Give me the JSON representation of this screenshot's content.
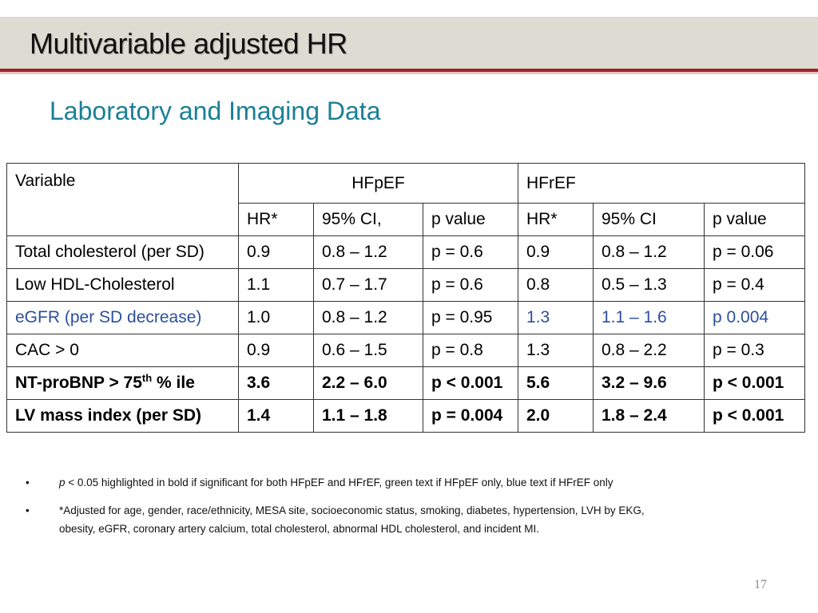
{
  "slide": {
    "title": "Multivariable adjusted HR",
    "subtitle": "Laboratory and Imaging Data",
    "page_number": "17"
  },
  "table": {
    "variable_header": "Variable",
    "group_headers": [
      "HFpEF",
      "HFrEF"
    ],
    "sub_headers": [
      "HR*",
      "95% CI,",
      "p value",
      "HR*",
      "95% CI",
      "p value"
    ],
    "rows": [
      {
        "variable": "Total cholesterol (per SD)",
        "cells": [
          "0.9",
          "0.8 – 1.2",
          "p = 0.6",
          "0.9",
          "0.8 – 1.2",
          "p = 0.06"
        ]
      },
      {
        "variable": "Low HDL-Cholesterol",
        "cells": [
          "1.1",
          "0.7 – 1.7",
          "p = 0.6",
          "0.8",
          "0.5 – 1.3",
          "p = 0.4"
        ]
      },
      {
        "variable": "eGFR (per SD decrease)",
        "cells": [
          "1.0",
          "0.8 – 1.2",
          "p = 0.95",
          "1.3",
          "1.1 – 1.6",
          "p 0.004"
        ]
      },
      {
        "variable": "CAC > 0",
        "cells": [
          "0.9",
          "0.6 – 1.5",
          "p = 0.8",
          "1.3",
          "0.8 – 2.2",
          "p = 0.3"
        ]
      },
      {
        "variable_prefix": "NT-proBNP > 75",
        "variable_sup": "th",
        "variable_suffix": " % ile",
        "cells": [
          "3.6",
          "2.2 – 6.0",
          "p < 0.001",
          "5.6",
          "3.2 – 9.6",
          "p < 0.001"
        ]
      },
      {
        "variable": "LV mass index (per SD)",
        "cells": [
          "1.4",
          "1.1 – 1.8",
          "p = 0.004",
          "2.0",
          "1.8 – 2.4",
          "p < 0.001"
        ]
      }
    ]
  },
  "notes": {
    "bullet_glyph": "•",
    "note1_italic": "p",
    "note1_text": " < 0.05 highlighted in bold if significant for both HFpEF and HFrEF, green text if HFpEF only, blue text if HFrEF only",
    "note2_line1": "*Adjusted for age, gender, race/ethnicity, MESA site, socioeconomic status, smoking, diabetes, hypertension, LVH by EKG,",
    "note2_line2": "obesity, eGFR, coronary artery calcium, total cholesterol, abnormal HDL cholesterol, and incident MI."
  },
  "colors": {
    "title_bar": "#dcdcd2",
    "title_rule": "#a0212b",
    "subtitle": "#1a8096",
    "hfref_only_highlight": "#2c4f9e"
  }
}
